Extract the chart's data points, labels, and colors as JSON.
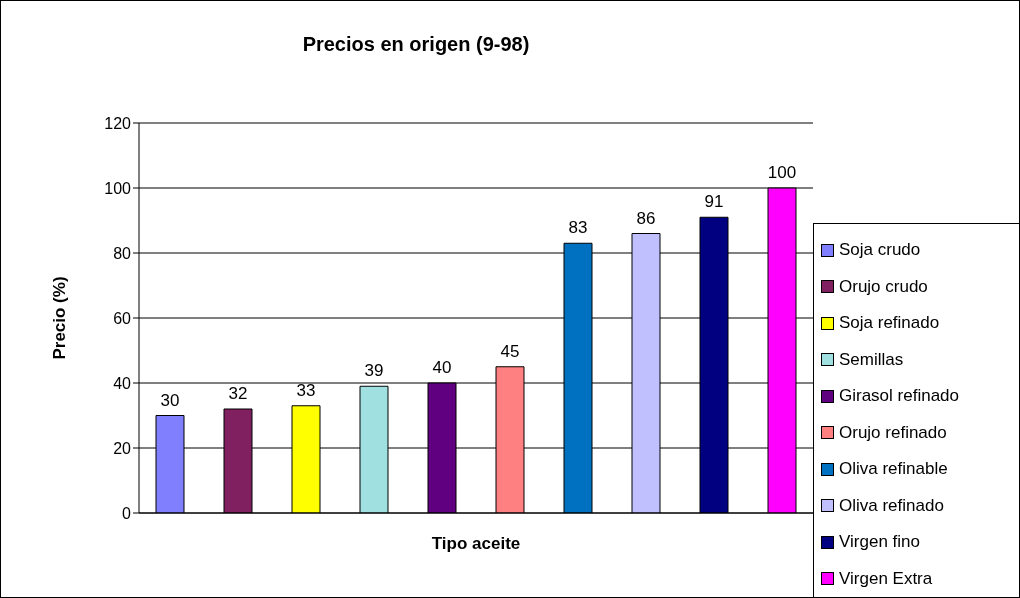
{
  "chart_data": {
    "type": "bar",
    "title": "Precios en origen (9-98)",
    "xlabel": "Tipo aceite",
    "ylabel": "Precio (%)",
    "categories": [
      null
    ],
    "series": [
      {
        "name": "Soja crudo",
        "color": "#8080ff",
        "values": [
          30
        ]
      },
      {
        "name": "Orujo crudo",
        "color": "#802060",
        "values": [
          32
        ]
      },
      {
        "name": "Soja refinado",
        "color": "#ffff00",
        "values": [
          33
        ]
      },
      {
        "name": "Semillas",
        "color": "#a0e0e0",
        "values": [
          39
        ]
      },
      {
        "name": "Girasol refinado",
        "color": "#600080",
        "values": [
          40
        ]
      },
      {
        "name": "Orujo refinado",
        "color": "#ff8080",
        "values": [
          45
        ]
      },
      {
        "name": "Oliva refinable",
        "color": "#0070c0",
        "values": [
          83
        ]
      },
      {
        "name": "Oliva refinado",
        "color": "#c0c0ff",
        "values": [
          86
        ]
      },
      {
        "name": "Virgen fino",
        "color": "#000080",
        "values": [
          91
        ]
      },
      {
        "name": "Virgen Extra",
        "color": "#ff00ff",
        "values": [
          100
        ]
      }
    ],
    "ylim": [
      0,
      120
    ],
    "yticks": [
      0,
      20,
      40,
      60,
      80,
      100,
      120
    ],
    "grid": "y",
    "legend": "right",
    "data_labels": true
  }
}
